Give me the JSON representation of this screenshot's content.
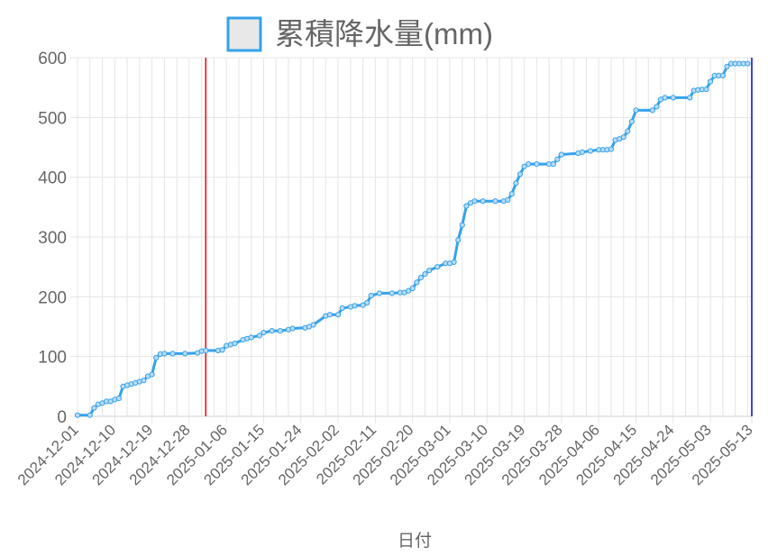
{
  "chart_data": {
    "type": "line",
    "legend": {
      "label": "累積降水量(mm)",
      "position": "top"
    },
    "xlabel": "日付",
    "ylabel": "",
    "x_range": [
      "2024-12-01",
      "2025-05-13"
    ],
    "ylim": [
      0,
      600
    ],
    "y_ticks": [
      0,
      100,
      200,
      300,
      400,
      500,
      600
    ],
    "x_ticks": [
      "2024-12-01",
      "2024-12-10",
      "2024-12-19",
      "2024-12-28",
      "2025-01-06",
      "2025-01-15",
      "2025-01-24",
      "2025-02-02",
      "2025-02-11",
      "2025-02-20",
      "2025-03-01",
      "2025-03-10",
      "2025-03-19",
      "2025-03-28",
      "2025-04-06",
      "2025-04-15",
      "2025-04-24",
      "2025-05-03",
      "2025-05-13"
    ],
    "grid": true,
    "colors": {
      "series": "#36a2eb",
      "marker_line_1": "#ff0000",
      "marker_line_2": "#0000ff",
      "grid": "#e5e5e5",
      "text": "#666666"
    },
    "marker_lines": [
      {
        "x": "2025-01-01",
        "color": "#ff0000"
      },
      {
        "x": "2025-05-13",
        "color": "#0000ff"
      }
    ],
    "series": [
      {
        "x": [
          "2024-12-01",
          "2024-12-04",
          "2024-12-05",
          "2024-12-06",
          "2024-12-07",
          "2024-12-08",
          "2024-12-09",
          "2024-12-10",
          "2024-12-11",
          "2024-12-12",
          "2024-12-13",
          "2024-12-14",
          "2024-12-15",
          "2024-12-16",
          "2024-12-17",
          "2024-12-18",
          "2024-12-19",
          "2024-12-20",
          "2024-12-21",
          "2024-12-22",
          "2024-12-24",
          "2024-12-27",
          "2024-12-30",
          "2024-12-31",
          "2025-01-01",
          "2025-01-04",
          "2025-01-05",
          "2025-01-06",
          "2025-01-07",
          "2025-01-08",
          "2025-01-10",
          "2025-01-11",
          "2025-01-12",
          "2025-01-14",
          "2025-01-15",
          "2025-01-17",
          "2025-01-19",
          "2025-01-21",
          "2025-01-22",
          "2025-01-25",
          "2025-01-26",
          "2025-01-27",
          "2025-01-30",
          "2025-01-31",
          "2025-02-02",
          "2025-02-03",
          "2025-02-05",
          "2025-02-06",
          "2025-02-08",
          "2025-02-09",
          "2025-02-10",
          "2025-02-12",
          "2025-02-15",
          "2025-02-17",
          "2025-02-18",
          "2025-02-19",
          "2025-02-20",
          "2025-02-21",
          "2025-02-22",
          "2025-02-23",
          "2025-02-24",
          "2025-02-26",
          "2025-02-28",
          "2025-03-01",
          "2025-03-02",
          "2025-03-03",
          "2025-03-04",
          "2025-03-05",
          "2025-03-06",
          "2025-03-07",
          "2025-03-09",
          "2025-03-12",
          "2025-03-14",
          "2025-03-15",
          "2025-03-16",
          "2025-03-17",
          "2025-03-18",
          "2025-03-19",
          "2025-03-20",
          "2025-03-22",
          "2025-03-25",
          "2025-03-26",
          "2025-03-27",
          "2025-03-28",
          "2025-04-01",
          "2025-04-02",
          "2025-04-04",
          "2025-04-06",
          "2025-04-07",
          "2025-04-08",
          "2025-04-09",
          "2025-04-10",
          "2025-04-11",
          "2025-04-12",
          "2025-04-13",
          "2025-04-14",
          "2025-04-15",
          "2025-04-19",
          "2025-04-20",
          "2025-04-21",
          "2025-04-22",
          "2025-04-24",
          "2025-04-28",
          "2025-04-29",
          "2025-04-30",
          "2025-05-01",
          "2025-05-02",
          "2025-05-03",
          "2025-05-04",
          "2025-05-05",
          "2025-05-06",
          "2025-05-07",
          "2025-05-08",
          "2025-05-09",
          "2025-05-10",
          "2025-05-11",
          "2025-05-12"
        ],
        "values": [
          2,
          2,
          14,
          20,
          22,
          25,
          25,
          28,
          30,
          50,
          52,
          54,
          56,
          58,
          60,
          67,
          70,
          98,
          104,
          105,
          105,
          105,
          106,
          109,
          110,
          110,
          111,
          118,
          120,
          122,
          128,
          130,
          132,
          135,
          140,
          143,
          143,
          145,
          147,
          148,
          150,
          153,
          168,
          170,
          170,
          181,
          183,
          185,
          186,
          190,
          202,
          206,
          206,
          207,
          207,
          210,
          214,
          224,
          232,
          238,
          244,
          250,
          256,
          256,
          258,
          295,
          320,
          352,
          357,
          360,
          360,
          360,
          360,
          362,
          372,
          390,
          405,
          418,
          422,
          422,
          422,
          422,
          430,
          438,
          440,
          442,
          444,
          446,
          446,
          446,
          447,
          462,
          464,
          467,
          477,
          493,
          512,
          512,
          518,
          530,
          533,
          533,
          533,
          545,
          546,
          547,
          547,
          560,
          570,
          570,
          570,
          585,
          590,
          590,
          590,
          590,
          590
        ],
        "color": "#36a2eb"
      }
    ]
  }
}
